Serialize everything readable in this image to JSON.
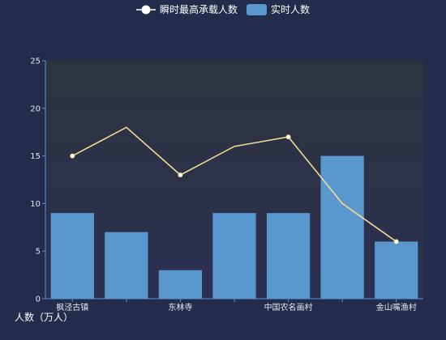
{
  "legend": {
    "line_label": "瞬时最高承载人数",
    "bar_label": "实时人数"
  },
  "colors": {
    "background": "#232c4a",
    "plot_background": "#2b3142",
    "bar": "#5b97cf",
    "line": "#efdc91",
    "axis": "#5b8fd8",
    "text": "#e4e8f2"
  },
  "chart_data": {
    "type": "bar",
    "title": "",
    "xlabel": "",
    "ylabel": "人数（万人）",
    "ylim": [
      0,
      25
    ],
    "yticks": [
      0,
      5,
      10,
      15,
      20,
      25
    ],
    "grid": false,
    "legend_position": "top-center",
    "categories": [
      "枫泾古镇",
      "",
      "东林寺",
      "",
      "中国农名画村",
      "",
      "金山嘴渔村"
    ],
    "series": [
      {
        "name": "实时人数",
        "type": "bar",
        "values": [
          9,
          7,
          3,
          9,
          9,
          15,
          6
        ]
      },
      {
        "name": "瞬时最高承载人数",
        "type": "line",
        "values": [
          15,
          18,
          13,
          16,
          17,
          10,
          6
        ],
        "markers_shown": [
          true,
          false,
          true,
          false,
          true,
          false,
          true
        ]
      }
    ]
  }
}
